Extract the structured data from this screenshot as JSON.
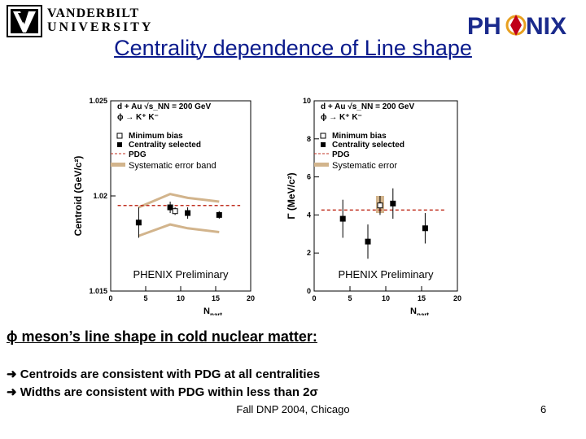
{
  "header": {
    "university": [
      "VANDERBILT",
      "UNIVERSITY"
    ],
    "experiment_logo_text": "PHENIX",
    "title": "Centrality dependence of Line shape"
  },
  "colors": {
    "title": "#0a1a8c",
    "pdg_line": "#c03020",
    "systematic_band": "#d2b48c",
    "phenix_red": "#c0001a",
    "phenix_blue": "#1a2a8c",
    "phenix_gold": "#e8a020"
  },
  "chart_data": [
    {
      "type": "scatter",
      "ylabel": "Centroid (GeV/c²)",
      "xlabel": "N_part",
      "xlim": [
        0,
        20
      ],
      "ylim": [
        1.015,
        1.025
      ],
      "xticks": [
        0,
        5,
        10,
        15,
        20
      ],
      "yticks": [
        1.015,
        1.02,
        1.025
      ],
      "ytick_labels": [
        "1.015",
        "1.02",
        "1.025"
      ],
      "legend": [
        "d + Au √s_NN = 200 GeV",
        "ϕ → K⁺ K⁻",
        "Minimum bias",
        "Centrality selected",
        "PDG",
        "Systematic error band"
      ],
      "watermark": "PHENIX Preliminary",
      "pdg_value": 1.0195,
      "series": [
        {
          "name": "Centrality selected",
          "x": [
            4,
            8.5,
            11,
            15.5
          ],
          "y": [
            1.0186,
            1.0194,
            1.0191,
            1.019
          ],
          "yerr": [
            0.0008,
            0.0003,
            0.0003,
            0.0002
          ]
        },
        {
          "name": "Minimum bias",
          "x": [
            9.2
          ],
          "y": [
            1.0192
          ],
          "yerr": [
            0.0002
          ]
        }
      ],
      "band": {
        "x": [
          4,
          8.5,
          11,
          15.5
        ],
        "upper": [
          1.0194,
          1.0201,
          1.0199,
          1.0197
        ],
        "lower": [
          1.0179,
          1.0185,
          1.0183,
          1.0181
        ]
      }
    },
    {
      "type": "scatter",
      "ylabel": "Γ (MeV/c²)",
      "xlabel": "N_part",
      "xlim": [
        0,
        20
      ],
      "ylim": [
        0,
        10
      ],
      "xticks": [
        0,
        5,
        10,
        15,
        20
      ],
      "yticks": [
        0,
        2,
        4,
        6,
        8,
        10
      ],
      "ytick_labels": [
        "0",
        "2",
        "4",
        "6",
        "8",
        "10"
      ],
      "legend": [
        "d + Au √s_NN = 200 GeV",
        "ϕ → K⁺ K⁻",
        "Minimum bias",
        "Centrality selected",
        "PDG",
        "Systematic error"
      ],
      "watermark": "PHENIX Preliminary",
      "pdg_value": 4.26,
      "series": [
        {
          "name": "Centrality selected",
          "x": [
            4,
            7.5,
            11,
            15.5
          ],
          "y": [
            3.8,
            2.6,
            4.6,
            3.3
          ],
          "yerr": [
            1.0,
            0.9,
            0.8,
            0.8
          ]
        },
        {
          "name": "Minimum bias",
          "x": [
            9.2
          ],
          "y": [
            4.5
          ],
          "yerr": [
            0.5
          ]
        }
      ],
      "syst_box": {
        "x": 9.2,
        "low": 4.1,
        "high": 5.0
      }
    }
  ],
  "meson_heading": "ϕ  meson’s line shape in cold nuclear matter:",
  "bullets": [
    "Centroids are consistent with PDG at all centralities",
    " Widths are consistent with PDG within less than 2σ"
  ],
  "footer": "Fall DNP 2004, Chicago",
  "page_number": "6"
}
